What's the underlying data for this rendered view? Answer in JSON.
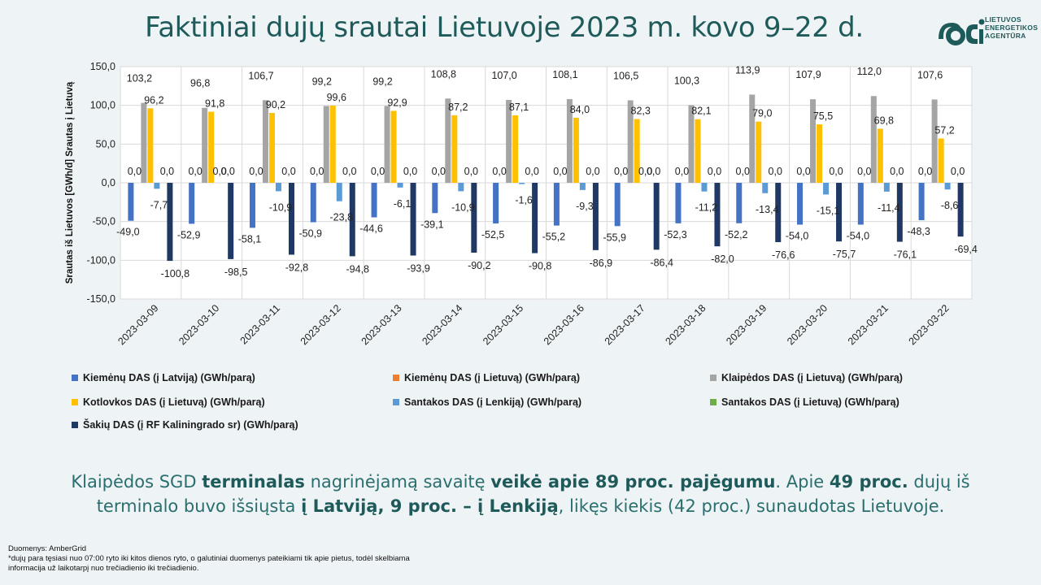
{
  "header": {
    "title": "Faktiniai dujų srautai Lietuvoje 2023 m. kovo 9–22 d.",
    "logo_lines": [
      "LIETUVOS",
      "ENERGETIKOS",
      "AGENTŪRA"
    ],
    "logo_icon": "lea-logo-icon"
  },
  "chart_data": {
    "type": "bar",
    "ylabel": "Srautas iš Lietuvos [GWh/d] Srautas į Lietuvą",
    "ylim": [
      -150,
      150
    ],
    "yticks": [
      "150,0",
      "100,0",
      "50,0",
      "0,0",
      "-50,0",
      "-100,0",
      "-150,0"
    ],
    "ytick_values": [
      150,
      100,
      50,
      0,
      -50,
      -100,
      -150
    ],
    "grid": true,
    "legend_position": "bottom",
    "categories": [
      "2023-03-09",
      "2023-03-10",
      "2023-03-11",
      "2023-03-12",
      "2023-03-13",
      "2023-03-14",
      "2023-03-15",
      "2023-03-16",
      "2023-03-17",
      "2023-03-18",
      "2023-03-19",
      "2023-03-20",
      "2023-03-21",
      "2023-03-22"
    ],
    "series": [
      {
        "name": "Kiemėnų DAS (į Latviją) (GWh/parą)",
        "color": "#4472c4",
        "values": [
          -49.0,
          -52.9,
          -58.1,
          -50.9,
          -44.6,
          -39.1,
          -52.5,
          -55.2,
          -55.9,
          -52.3,
          -52.2,
          -54.0,
          -54.0,
          -48.3
        ],
        "labels": [
          "-49,0",
          "-52,9",
          "-58,1",
          "-50,9",
          "-44,6",
          "-39,1",
          "-52,5",
          "-55,2",
          "-55,9",
          "-52,3",
          "-52,2",
          "-54,0",
          "-54,0",
          "-48,3"
        ]
      },
      {
        "name": "Kiemėnų DAS (į Lietuvą) (GWh/parą)",
        "color": "#ed7d31",
        "values": [
          0,
          0,
          0,
          0,
          0,
          0,
          0,
          0,
          0,
          0,
          0,
          0,
          0,
          0
        ],
        "labels": [
          "0,0",
          "0,0",
          "0,0",
          "0,0",
          "0,0",
          "0,0",
          "0,0",
          "0,0",
          "0,0",
          "0,0",
          "0,0",
          "0,0",
          "0,0",
          "0,0"
        ]
      },
      {
        "name": "Klaipėdos DAS (į Lietuvą) (GWh/parą)",
        "color": "#a5a5a5",
        "values": [
          103.2,
          96.8,
          106.7,
          99.2,
          99.2,
          108.8,
          107.0,
          108.1,
          106.5,
          100.3,
          113.9,
          107.9,
          112.0,
          107.6
        ],
        "labels": [
          "103,2",
          "96,8",
          "106,7",
          "99,2",
          "99,2",
          "108,8",
          "107,0",
          "108,1",
          "106,5",
          "100,3",
          "113,9",
          "107,9",
          "112,0",
          "107,6"
        ]
      },
      {
        "name": "Kotlovkos DAS (į Lietuvą) (GWh/parą)",
        "color": "#ffc000",
        "values": [
          96.2,
          91.8,
          90.2,
          99.6,
          92.9,
          87.2,
          87.1,
          84.0,
          82.3,
          82.1,
          79.0,
          75.5,
          69.8,
          57.2
        ],
        "labels": [
          "96,2",
          "91,8",
          "90,2",
          "99,6",
          "92,9",
          "87,2",
          "87,1",
          "84,0",
          "82,3",
          "82,1",
          "79,0",
          "75,5",
          "69,8",
          "57,2"
        ]
      },
      {
        "name": "Santakos DAS (į Lenkiją) (GWh/parą)",
        "color": "#5b9bd5",
        "values": [
          -7.7,
          0,
          -10.9,
          -23.8,
          -6.1,
          -10.9,
          -1.6,
          -9.3,
          0,
          -11.2,
          -13.4,
          -15.1,
          -11.4,
          -8.6
        ],
        "labels": [
          "-7,7",
          "0,0",
          "-10,9",
          "-23,8",
          "-6,1",
          "-10,9",
          "-1,6",
          "-9,3",
          "0,0",
          "-11,2",
          "-13,4",
          "-15,1",
          "-11,4",
          "-8,6"
        ]
      },
      {
        "name": "Santakos DAS (į Lietuvą) (GWh/parą)",
        "color": "#70ad47",
        "values": [
          0,
          0,
          0,
          0,
          0,
          0,
          0,
          0,
          0,
          0,
          0,
          0,
          0,
          0
        ],
        "labels": [
          "0,0",
          "0,0",
          "0,0",
          "0,0",
          "0,0",
          "0,0",
          "0,0",
          "0,0",
          "0,0",
          "0,0",
          "0,0",
          "0,0",
          "0,0",
          "0,0"
        ]
      },
      {
        "name": "Šakių DAS (į RF Kaliningrado sr) (GWh/parą)",
        "color": "#203864",
        "values": [
          -100.8,
          -98.5,
          -92.8,
          -94.8,
          -93.9,
          -90.2,
          -90.8,
          -86.9,
          -86.4,
          -82.0,
          -76.6,
          -75.7,
          -76.1,
          -69.4
        ],
        "labels": [
          "-100,8",
          "-98,5",
          "-92,8",
          "-94,8",
          "-93,9",
          "-90,2",
          "-90,8",
          "-86,9",
          "-86,4",
          "-82,0",
          "-76,6",
          "-75,7",
          "-76,1",
          "-69,4"
        ]
      }
    ]
  },
  "summary": {
    "p1": "Klaipėdos SGD ",
    "b1": "terminalas",
    "p2": " nagrinėjamą savaitę ",
    "b2": "veikė apie 89 proc. pajėgumu",
    "p3": ". Apie ",
    "b3": "49 proc.",
    "p4": " dujų iš terminalo buvo išsiųsta ",
    "b4": "į Latviją, 9 proc. – į Lenkiją",
    "p5": ", likęs kiekis (42 proc.) sunaudotas Lietuvoje."
  },
  "footer": {
    "source": "Duomenys: AmberGrid",
    "note1": "*dujų para tęsiasi nuo 07:00 ryto iki kitos dienos ryto, o galutiniai duomenys pateikiami tik apie pietus, todėl skelbiama",
    "note2": "informacija už laikotarpį nuo trečiadienio iki trečiadienio."
  }
}
